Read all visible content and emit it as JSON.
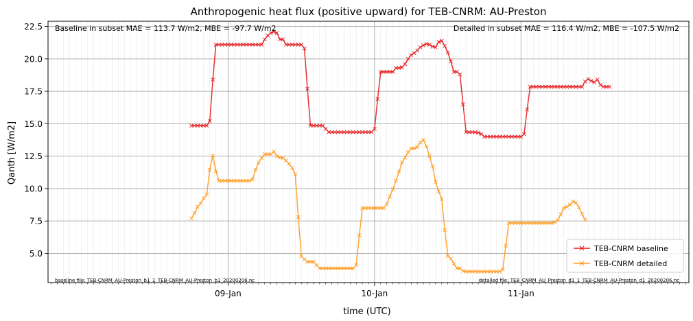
{
  "chart_data": {
    "type": "line",
    "title": "Anthropogenic heat flux (positive upward) for TEB-CNRM: AU-Preston",
    "xlabel": "time (UTC)",
    "ylabel": "Qanth [W/m2]",
    "x_unit": "hours since 2016-01-08 00:00 UTC",
    "xlim": [
      -29.5,
      75.5
    ],
    "ylim": [
      2.75,
      22.9
    ],
    "x_ticks": [
      {
        "x": 0,
        "label": "09-Jan"
      },
      {
        "x": 24,
        "label": "10-Jan"
      },
      {
        "x": 48,
        "label": "11-Jan"
      }
    ],
    "y_ticks": [
      5.0,
      7.5,
      10.0,
      12.5,
      15.0,
      17.5,
      20.0,
      22.5
    ],
    "y_tick_labels": [
      "5.0",
      "7.5",
      "10.0",
      "12.5",
      "15.0",
      "17.5",
      "20.0",
      "22.5"
    ],
    "grid": true,
    "legend_position": "lower-right",
    "x_step_hours": 0.5,
    "x_start": -6.0,
    "series": [
      {
        "name": "TEB-CNRM baseline",
        "color": "#e41a1c",
        "marker": "x",
        "values": [
          14.85,
          14.85,
          14.85,
          14.85,
          14.85,
          14.85,
          15.2,
          18.4,
          21.1,
          21.1,
          21.1,
          21.1,
          21.1,
          21.1,
          21.1,
          21.1,
          21.1,
          21.1,
          21.1,
          21.1,
          21.1,
          21.1,
          21.1,
          21.1,
          21.5,
          21.8,
          22.0,
          22.1,
          22.0,
          21.5,
          21.5,
          21.1,
          21.1,
          21.1,
          21.1,
          21.1,
          21.1,
          20.8,
          17.7,
          14.85,
          14.85,
          14.85,
          14.85,
          14.85,
          14.6,
          14.35,
          14.35,
          14.35,
          14.35,
          14.35,
          14.35,
          14.35,
          14.35,
          14.35,
          14.35,
          14.35,
          14.35,
          14.35,
          14.35,
          14.35,
          14.6,
          16.9,
          19.0,
          19.0,
          19.0,
          19.0,
          19.0,
          19.3,
          19.3,
          19.35,
          19.6,
          20.0,
          20.3,
          20.45,
          20.65,
          20.9,
          21.05,
          21.15,
          21.1,
          20.95,
          20.9,
          21.3,
          21.4,
          21.0,
          20.5,
          19.8,
          19.0,
          19.0,
          18.8,
          16.5,
          14.35,
          14.35,
          14.35,
          14.35,
          14.3,
          14.2,
          14.0,
          14.0,
          14.0,
          14.0,
          14.0,
          14.0,
          14.0,
          14.0,
          14.0,
          14.0,
          14.0,
          14.0,
          14.0,
          14.2,
          16.1,
          17.85,
          17.85,
          17.85,
          17.85,
          17.85,
          17.85,
          17.85,
          17.85,
          17.85,
          17.85,
          17.85,
          17.85,
          17.85,
          17.85,
          17.85,
          17.85,
          17.85,
          17.85,
          18.25,
          18.45,
          18.3,
          18.2,
          18.4,
          18.0,
          17.85,
          17.85,
          17.85
        ]
      },
      {
        "name": "TEB-CNRM detailed",
        "color": "#ff9a1e",
        "marker": "x",
        "values": [
          7.7,
          8.1,
          8.6,
          8.85,
          9.25,
          9.55,
          11.45,
          12.55,
          11.35,
          10.6,
          10.6,
          10.6,
          10.6,
          10.6,
          10.6,
          10.6,
          10.6,
          10.6,
          10.6,
          10.6,
          10.7,
          11.45,
          12.0,
          12.35,
          12.65,
          12.65,
          12.65,
          12.85,
          12.5,
          12.4,
          12.35,
          12.15,
          11.9,
          11.6,
          11.1,
          7.8,
          4.8,
          4.55,
          4.35,
          4.35,
          4.35,
          4.1,
          3.85,
          3.85,
          3.85,
          3.85,
          3.85,
          3.85,
          3.85,
          3.85,
          3.85,
          3.85,
          3.85,
          3.85,
          4.1,
          6.4,
          8.5,
          8.5,
          8.5,
          8.5,
          8.5,
          8.5,
          8.5,
          8.5,
          8.8,
          9.4,
          9.95,
          10.6,
          11.3,
          12.0,
          12.4,
          12.8,
          13.1,
          13.1,
          13.2,
          13.55,
          13.75,
          13.25,
          12.5,
          11.7,
          10.5,
          9.8,
          9.2,
          6.8,
          4.8,
          4.6,
          4.2,
          3.85,
          3.85,
          3.65,
          3.6,
          3.6,
          3.6,
          3.6,
          3.6,
          3.6,
          3.6,
          3.6,
          3.6,
          3.6,
          3.6,
          3.6,
          3.75,
          5.6,
          7.35,
          7.35,
          7.35,
          7.35,
          7.35,
          7.35,
          7.35,
          7.35,
          7.35,
          7.35,
          7.35,
          7.35,
          7.35,
          7.35,
          7.35,
          7.4,
          7.55,
          8.0,
          8.5,
          8.6,
          8.75,
          9.0,
          8.9,
          8.55,
          8.05,
          7.6
        ]
      }
    ],
    "annotations": {
      "baseline_stats": "Baseline in subset MAE = 113.7 W/m2, MBE = -97.7 W/m2",
      "detailed_stats": "Detailed in subset MAE = 116.4 W/m2, MBE = -107.5 W/m2",
      "baseline_file": "baseline file: TEB-CNRM_AU-Preston_b1_1_TEB-CNRM_AU-Preston_b1_20200206.nc",
      "detailed_file": "detailed file: TEB_CNRM_AU_Preston_d1_1_TEB-CNRM_AU-Preston_d1_20200206.nc"
    }
  }
}
